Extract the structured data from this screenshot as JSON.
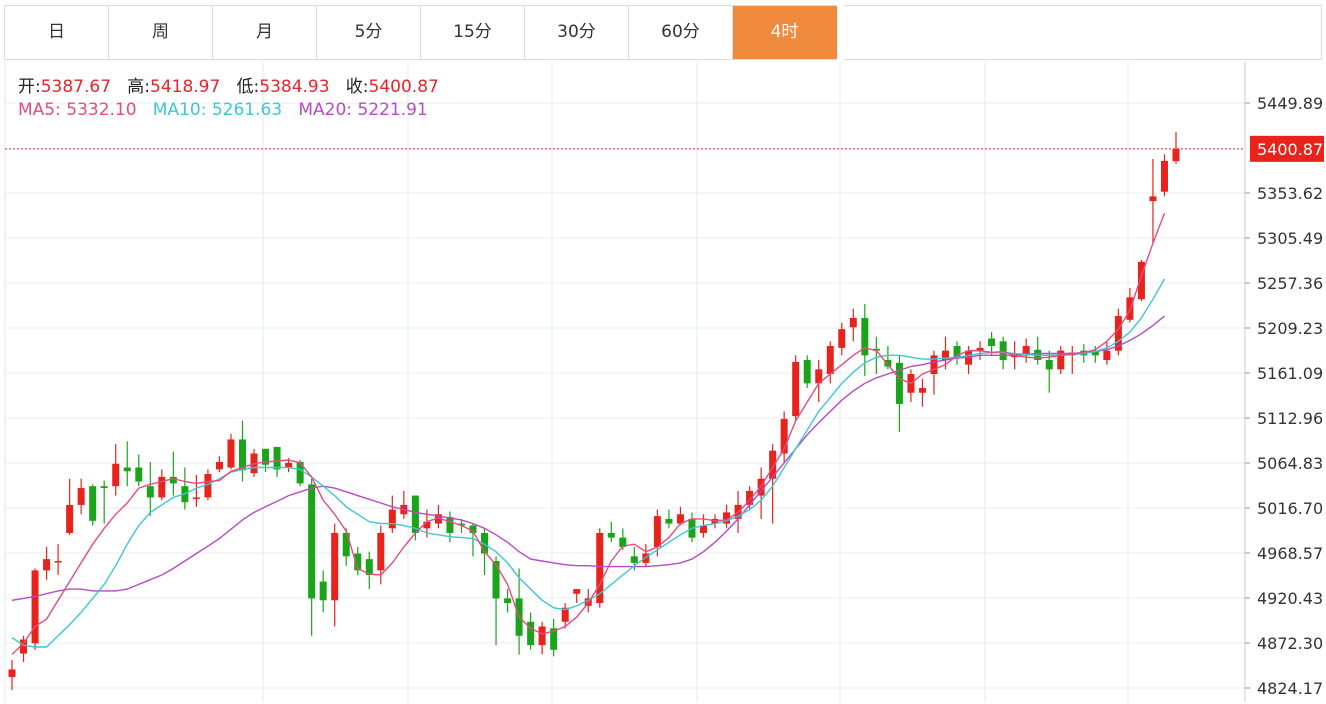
{
  "tabs": [
    {
      "label": "日",
      "active": false
    },
    {
      "label": "周",
      "active": false
    },
    {
      "label": "月",
      "active": false
    },
    {
      "label": "5分",
      "active": false
    },
    {
      "label": "15分",
      "active": false
    },
    {
      "label": "30分",
      "active": false
    },
    {
      "label": "60分",
      "active": false
    },
    {
      "label": "4时",
      "active": true
    }
  ],
  "ohlc_info": {
    "open_label": "开:",
    "open": "5387.67",
    "high_label": "高:",
    "high": "5418.97",
    "low_label": "低:",
    "low": "5384.93",
    "close_label": "收:",
    "close": "5400.87"
  },
  "ma_info": {
    "ma5_label": "MA5:",
    "ma5": "5332.10",
    "ma10_label": "MA10:",
    "ma10": "5261.63",
    "ma20_label": "MA20:",
    "ma20": "5221.91"
  },
  "colors": {
    "up": "#e8231b",
    "down": "#1aa41a",
    "ma5": "#e84a7f",
    "ma10": "#3cc6d6",
    "ma20": "#b44cc4",
    "active_tab": "#f08a3c",
    "last_price_bg": "#e8231b"
  },
  "chart_data": {
    "type": "candlestick",
    "y_ticks": [
      "5449.89",
      "5353.62",
      "5305.49",
      "5257.36",
      "5209.23",
      "5161.09",
      "5112.96",
      "5064.83",
      "5016.70",
      "4968.57",
      "4920.43",
      "4872.30",
      "4824.17"
    ],
    "ylim": [
      4815,
      5475
    ],
    "last_price": "5400.87",
    "candles": [
      [
        4836,
        4844,
        4822,
        4854
      ],
      [
        4861,
        4876,
        4852,
        4880
      ],
      [
        4872,
        4950,
        4865,
        4952
      ],
      [
        4950,
        4962,
        4940,
        4975
      ],
      [
        4960,
        4960,
        4945,
        4978
      ],
      [
        4990,
        5020,
        4988,
        5048
      ],
      [
        5020,
        5038,
        5010,
        5048
      ],
      [
        5040,
        5003,
        4998,
        5042
      ],
      [
        5040,
        5038,
        5000,
        5046
      ],
      [
        5040,
        5064,
        5030,
        5085
      ],
      [
        5060,
        5056,
        5040,
        5088
      ],
      [
        5060,
        5045,
        5040,
        5074
      ],
      [
        5040,
        5028,
        5008,
        5066
      ],
      [
        5028,
        5050,
        5025,
        5058
      ],
      [
        5050,
        5043,
        5030,
        5077
      ],
      [
        5040,
        5023,
        5015,
        5060
      ],
      [
        5028,
        5028,
        5018,
        5052
      ],
      [
        5028,
        5053,
        5025,
        5058
      ],
      [
        5058,
        5066,
        5055,
        5072
      ],
      [
        5060,
        5090,
        5058,
        5096
      ],
      [
        5090,
        5057,
        5045,
        5110
      ],
      [
        5054,
        5075,
        5050,
        5080
      ],
      [
        5080,
        5063,
        5055,
        5080
      ],
      [
        5082,
        5058,
        5050,
        5082
      ],
      [
        5060,
        5065,
        5055,
        5070
      ],
      [
        5066,
        5043,
        5040,
        5068
      ],
      [
        5042,
        4920,
        4880,
        5048
      ],
      [
        4938,
        4918,
        4905,
        4950
      ],
      [
        4918,
        4990,
        4890,
        5000
      ],
      [
        4990,
        4965,
        4955,
        4995
      ],
      [
        4968,
        4950,
        4945,
        4975
      ],
      [
        4962,
        4945,
        4930,
        4970
      ],
      [
        4950,
        4990,
        4935,
        4998
      ],
      [
        4995,
        5015,
        4990,
        5030
      ],
      [
        5010,
        5020,
        5005,
        5035
      ],
      [
        5030,
        4990,
        4982,
        5030
      ],
      [
        4995,
        5002,
        4985,
        5015
      ],
      [
        5000,
        5010,
        4995,
        5020
      ],
      [
        5007,
        4990,
        4980,
        5013
      ],
      [
        5000,
        4998,
        4990,
        5005
      ],
      [
        4998,
        4990,
        4965,
        5000
      ],
      [
        4990,
        4968,
        4945,
        4995
      ],
      [
        4960,
        4920,
        4870,
        4965
      ],
      [
        4920,
        4915,
        4905,
        4930
      ],
      [
        4920,
        4880,
        4860,
        4952
      ],
      [
        4895,
        4870,
        4865,
        4905
      ],
      [
        4870,
        4890,
        4860,
        4895
      ],
      [
        4888,
        4865,
        4858,
        4898
      ],
      [
        4895,
        4910,
        4888,
        4915
      ],
      [
        4925,
        4930,
        4915,
        4930
      ],
      [
        4912,
        4920,
        4905,
        4930
      ],
      [
        4915,
        4990,
        4910,
        4995
      ],
      [
        4990,
        4985,
        4980,
        5002
      ],
      [
        4985,
        4975,
        4972,
        4995
      ],
      [
        4965,
        4958,
        4950,
        4975
      ],
      [
        4958,
        4968,
        4954,
        4978
      ],
      [
        4975,
        5008,
        4965,
        5015
      ],
      [
        5005,
        5000,
        4995,
        5015
      ],
      [
        5000,
        5010,
        4998,
        5018
      ],
      [
        5005,
        4985,
        4980,
        5012
      ],
      [
        4990,
        4998,
        4985,
        5010
      ],
      [
        5000,
        5005,
        4995,
        5010
      ],
      [
        5000,
        5012,
        4995,
        5020
      ],
      [
        5005,
        5020,
        4990,
        5035
      ],
      [
        5020,
        5035,
        5015,
        5040
      ],
      [
        5030,
        5048,
        5005,
        5060
      ],
      [
        5048,
        5078,
        5000,
        5085
      ],
      [
        5075,
        5112,
        5065,
        5120
      ],
      [
        5115,
        5173,
        5110,
        5180
      ],
      [
        5175,
        5150,
        5145,
        5180
      ],
      [
        5150,
        5165,
        5130,
        5175
      ],
      [
        5160,
        5190,
        5150,
        5195
      ],
      [
        5188,
        5208,
        5180,
        5215
      ],
      [
        5210,
        5220,
        5195,
        5230
      ],
      [
        5220,
        5180,
        5158,
        5235
      ],
      [
        5187,
        5185,
        5160,
        5200
      ],
      [
        5175,
        5168,
        5165,
        5190
      ],
      [
        5172,
        5128,
        5098,
        5180
      ],
      [
        5140,
        5160,
        5130,
        5165
      ],
      [
        5140,
        5145,
        5125,
        5155
      ],
      [
        5160,
        5180,
        5138,
        5185
      ],
      [
        5175,
        5185,
        5165,
        5200
      ],
      [
        5190,
        5178,
        5170,
        5195
      ],
      [
        5170,
        5185,
        5160,
        5190
      ],
      [
        5185,
        5188,
        5175,
        5195
      ],
      [
        5198,
        5190,
        5180,
        5205
      ],
      [
        5195,
        5175,
        5165,
        5200
      ],
      [
        5178,
        5182,
        5165,
        5195
      ],
      [
        5180,
        5190,
        5172,
        5198
      ],
      [
        5186,
        5175,
        5170,
        5200
      ],
      [
        5175,
        5165,
        5140,
        5185
      ],
      [
        5165,
        5185,
        5160,
        5190
      ],
      [
        5180,
        5183,
        5160,
        5190
      ],
      [
        5185,
        5180,
        5172,
        5192
      ],
      [
        5185,
        5180,
        5172,
        5190
      ],
      [
        5175,
        5185,
        5170,
        5195
      ],
      [
        5185,
        5222,
        5180,
        5230
      ],
      [
        5218,
        5242,
        5215,
        5252
      ],
      [
        5240,
        5280,
        5238,
        5282
      ],
      [
        5345,
        5350,
        5300,
        5390
      ],
      [
        5355,
        5388,
        5350,
        5395
      ],
      [
        5387.67,
        5400.87,
        5384.93,
        5418.97
      ]
    ],
    "ma5": [
      4860,
      4872,
      4890,
      4898,
      4918,
      4938,
      4958,
      4978,
      4995,
      5010,
      5022,
      5038,
      5042,
      5045,
      5048,
      5045,
      5043,
      5045,
      5046,
      5056,
      5060,
      5064,
      5066,
      5067,
      5068,
      5065,
      5050,
      5025,
      5010,
      4992,
      4952,
      4946,
      4945,
      4958,
      4975,
      4990,
      5002,
      5006,
      5002,
      4998,
      4992,
      4970,
      4956,
      4935,
      4900,
      4888,
      4882,
      4885,
      4890,
      4900,
      4915,
      4935,
      4960,
      4976,
      4978,
      4970,
      4975,
      4985,
      5000,
      5005,
      5005,
      5003,
      5004,
      5012,
      5025,
      5040,
      5060,
      5080,
      5110,
      5130,
      5150,
      5160,
      5170,
      5180,
      5188,
      5185,
      5170,
      5155,
      5150,
      5160,
      5165,
      5170,
      5180,
      5185,
      5185,
      5183,
      5184,
      5180,
      5178,
      5177,
      5178,
      5180,
      5181,
      5183,
      5186,
      5195,
      5208,
      5228,
      5265,
      5300,
      5332.1
    ],
    "ma10": [
      4878,
      4870,
      4868,
      4868,
      4880,
      4892,
      4905,
      4920,
      4935,
      4955,
      4978,
      4998,
      5012,
      5020,
      5028,
      5032,
      5038,
      5042,
      5048,
      5055,
      5058,
      5060,
      5060,
      5060,
      5060,
      5058,
      5050,
      5040,
      5030,
      5018,
      5010,
      5002,
      5000,
      5000,
      4998,
      4995,
      4990,
      4988,
      4986,
      4985,
      4984,
      4978,
      4970,
      4958,
      4942,
      4930,
      4918,
      4910,
      4908,
      4912,
      4918,
      4925,
      4935,
      4945,
      4955,
      4964,
      4972,
      4980,
      4988,
      4995,
      4998,
      5000,
      5003,
      5008,
      5015,
      5025,
      5040,
      5060,
      5080,
      5100,
      5120,
      5135,
      5150,
      5162,
      5172,
      5178,
      5180,
      5180,
      5178,
      5176,
      5176,
      5177,
      5178,
      5180,
      5182,
      5183,
      5183,
      5182,
      5181,
      5180,
      5180,
      5180,
      5181,
      5182,
      5184,
      5188,
      5195,
      5205,
      5220,
      5240,
      5261.63
    ],
    "ma20": [
      4918,
      4920,
      4922,
      4925,
      4928,
      4930,
      4930,
      4928,
      4928,
      4928,
      4930,
      4935,
      4940,
      4945,
      4952,
      4960,
      4968,
      4976,
      4984,
      4994,
      5004,
      5012,
      5018,
      5024,
      5030,
      5034,
      5038,
      5040,
      5038,
      5034,
      5030,
      5026,
      5022,
      5018,
      5015,
      5012,
      5010,
      5008,
      5006,
      5004,
      5000,
      4995,
      4988,
      4980,
      4970,
      4962,
      4960,
      4958,
      4956,
      4955,
      4955,
      4954,
      4954,
      4954,
      4954,
      4954,
      4955,
      4956,
      4958,
      4962,
      4970,
      4980,
      4992,
      5005,
      5020,
      5035,
      5050,
      5065,
      5080,
      5095,
      5108,
      5120,
      5132,
      5142,
      5150,
      5156,
      5160,
      5164,
      5168,
      5170,
      5173,
      5175,
      5177,
      5178,
      5180,
      5180,
      5180,
      5180,
      5181,
      5182,
      5182,
      5182,
      5182,
      5183,
      5184,
      5186,
      5190,
      5196,
      5203,
      5212,
      5221.91
    ]
  }
}
